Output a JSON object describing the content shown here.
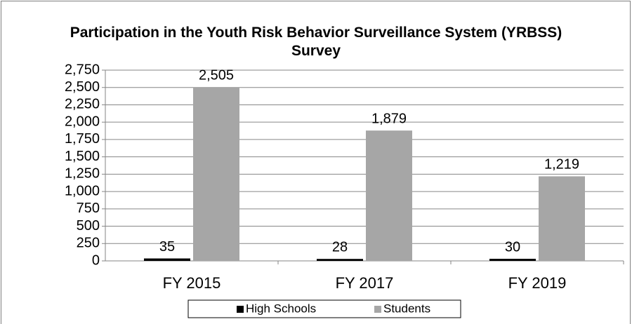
{
  "chart_data": {
    "type": "bar",
    "title": "Participation in the Youth Risk Behavior Surveillance System (YRBSS) Survey",
    "categories": [
      "FY 2015",
      "FY 2017",
      "FY 2019"
    ],
    "series": [
      {
        "name": "High Schools",
        "color": "#000000",
        "values": [
          35,
          28,
          30
        ],
        "value_labels": [
          "35",
          "28",
          "30"
        ]
      },
      {
        "name": "Students",
        "color": "#a6a6a6",
        "values": [
          2505,
          1879,
          1219
        ],
        "value_labels": [
          "2,505",
          "1,879",
          "1,219"
        ]
      }
    ],
    "ylim": [
      0,
      2750
    ],
    "yticks": [
      0,
      250,
      500,
      750,
      {
        "value": 1000,
        "label": "1,000"
      },
      {
        "value": 1250,
        "label": "1,250"
      },
      {
        "value": 1500,
        "label": "1,500"
      },
      {
        "value": 1750,
        "label": "1,750"
      },
      {
        "value": 2000,
        "label": "2,000"
      },
      {
        "value": 2250,
        "label": "2,250"
      },
      {
        "value": 2500,
        "label": "2,500"
      },
      {
        "value": 2750,
        "label": "2,750"
      }
    ],
    "grid": true,
    "legend": "bottom"
  }
}
